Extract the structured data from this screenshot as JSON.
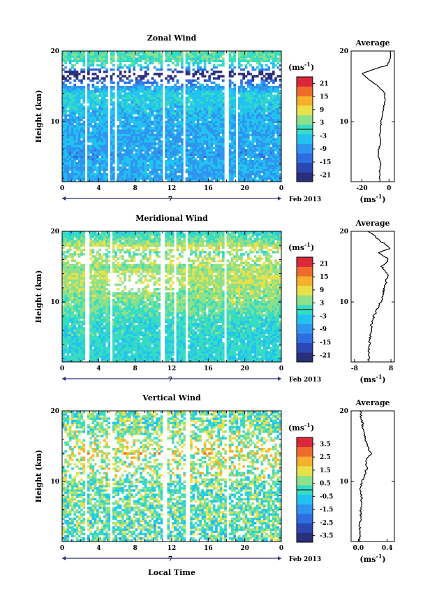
{
  "colors": {
    "colormap": [
      "#2a2f7c",
      "#2b47b2",
      "#2e6ee0",
      "#2f95f0",
      "#22c3f0",
      "#37dcc2",
      "#8ee08a",
      "#e8e14a",
      "#f6b02e",
      "#ee6b2c",
      "#d8283a"
    ],
    "ave_line": "#000000",
    "time_arrow": "#2a2f7c"
  },
  "panels": [
    {
      "key": "zonal",
      "title": "Zonal Wind",
      "ylabel": "Height (km)",
      "yticks": [
        "10",
        "20"
      ],
      "xticks": [
        "0",
        "4",
        "8",
        "12",
        "16",
        "20",
        "0"
      ],
      "date_marker": "7",
      "month_label": "Feb 2013",
      "cbar_unit_base": "(ms",
      "cbar_unit_exp": "-1",
      "cbar_unit_close": ")",
      "cbar_ticks": [
        "21",
        "15",
        "9",
        "3",
        "-3",
        "-9",
        "-15",
        "-21"
      ],
      "avg_title": "Average",
      "avg_yticks": [
        "10",
        "20"
      ],
      "avg_xticks": [
        "-20",
        "0"
      ],
      "avg_unit_base": "(ms",
      "avg_unit_exp": "-1",
      "avg_unit_close": ")"
    },
    {
      "key": "meridional",
      "title": "Meridional Wind",
      "ylabel": "Height (km)",
      "yticks": [
        "10",
        "20"
      ],
      "xticks": [
        "0",
        "4",
        "8",
        "12",
        "16",
        "20",
        "0"
      ],
      "date_marker": "7",
      "month_label": "Feb 2013",
      "cbar_unit_base": "(ms",
      "cbar_unit_exp": "-1",
      "cbar_unit_close": ")",
      "cbar_ticks": [
        "21",
        "15",
        "9",
        "3",
        "-3",
        "-9",
        "-15",
        "-21"
      ],
      "avg_title": "Average",
      "avg_yticks": [
        "10",
        "20"
      ],
      "avg_xticks": [
        "-8",
        "8"
      ],
      "avg_unit_base": "(ms",
      "avg_unit_exp": "-1",
      "avg_unit_close": ")"
    },
    {
      "key": "vertical",
      "title": "Vertical Wind",
      "ylabel": "Height (km)",
      "yticks": [
        "10",
        "20"
      ],
      "xticks": [
        "0",
        "4",
        "8",
        "12",
        "16",
        "20",
        "0"
      ],
      "date_marker": "7",
      "month_label": "Feb 2013",
      "cbar_unit_base": "(ms",
      "cbar_unit_exp": "-1",
      "cbar_unit_close": ")",
      "cbar_ticks": [
        "3.5",
        "2.5",
        "1.5",
        "0.5",
        "-0.5",
        "-1.5",
        "-2.5",
        "-3.5"
      ],
      "avg_title": "Average",
      "avg_yticks": [
        "10",
        "20"
      ],
      "avg_xticks": [
        "0.0",
        "0.4"
      ],
      "avg_unit_base": "(ms",
      "avg_unit_exp": "-1",
      "avg_unit_close": ")",
      "xlabel": "Local Time"
    }
  ],
  "chart_data": [
    {
      "type": "heatmap",
      "title": "Zonal Wind",
      "xlabel": "",
      "ylabel": "Height (km)",
      "x_ticks": [
        "0",
        "4",
        "8",
        "12",
        "16",
        "20",
        "0"
      ],
      "xlim": [
        0,
        24
      ],
      "ylim": [
        1.5,
        20
      ],
      "colorbar": {
        "label": "(ms-1)",
        "ticks": [
          21,
          15,
          9,
          3,
          -3,
          -9,
          -15,
          -21
        ],
        "range": [
          -24,
          24
        ]
      },
      "gaps_hours": [
        [
          2.4,
          2.8
        ],
        [
          5.0,
          5.3
        ],
        [
          5.8,
          6.0
        ],
        [
          10.9,
          11.3
        ],
        [
          13.3,
          13.6
        ],
        [
          17.8,
          18.2
        ],
        [
          19.1,
          19.3
        ]
      ],
      "profile": {
        "mean_by_height_km": [
          [
            1.5,
            -7
          ],
          [
            3,
            -7
          ],
          [
            4,
            -6
          ],
          [
            5,
            -8
          ],
          [
            6,
            -8
          ],
          [
            7,
            -6
          ],
          [
            8,
            -7
          ],
          [
            9,
            -6
          ],
          [
            10,
            -6
          ],
          [
            11,
            -5
          ],
          [
            12,
            -4
          ],
          [
            13,
            -3
          ],
          [
            14,
            -3
          ],
          [
            15,
            -8
          ],
          [
            16,
            -15
          ],
          [
            16.8,
            -20
          ],
          [
            17.5,
            -10
          ],
          [
            18,
            -1
          ],
          [
            19,
            1
          ],
          [
            20,
            1
          ]
        ]
      }
    },
    {
      "type": "heatmap",
      "title": "Meridional Wind",
      "xlabel": "",
      "ylabel": "Height (km)",
      "x_ticks": [
        "0",
        "4",
        "8",
        "12",
        "16",
        "20",
        "0"
      ],
      "xlim": [
        0,
        24
      ],
      "ylim": [
        1.5,
        20
      ],
      "colorbar": {
        "label": "(ms-1)",
        "ticks": [
          21,
          15,
          9,
          3,
          -3,
          -9,
          -15,
          -21
        ],
        "range": [
          -24,
          24
        ]
      },
      "gaps_hours": [
        [
          2.6,
          2.9
        ],
        [
          5.2,
          5.5
        ],
        [
          10.8,
          11.2
        ],
        [
          12.2,
          12.6
        ],
        [
          13.4,
          13.7
        ],
        [
          17.7,
          18.1
        ]
      ],
      "profile": {
        "mean_by_height_km": [
          [
            1.5,
            -1.8
          ],
          [
            3,
            -1.7
          ],
          [
            4,
            -1.5
          ],
          [
            5,
            -1.2
          ],
          [
            6,
            -0.8
          ],
          [
            7,
            -0.5
          ],
          [
            8,
            0.5
          ],
          [
            9,
            2
          ],
          [
            10,
            3.5
          ],
          [
            11,
            4.5
          ],
          [
            12,
            5
          ],
          [
            13,
            6
          ],
          [
            14,
            6.5
          ],
          [
            15,
            4
          ],
          [
            16,
            7
          ],
          [
            17,
            2.5
          ],
          [
            17.6,
            8
          ],
          [
            18.5,
            4
          ],
          [
            19.3,
            1
          ],
          [
            20,
            -2
          ]
        ]
      }
    },
    {
      "type": "heatmap",
      "title": "Vertical Wind",
      "xlabel": "Local Time",
      "ylabel": "Height (km)",
      "x_ticks": [
        "0",
        "4",
        "8",
        "12",
        "16",
        "20",
        "0"
      ],
      "xlim": [
        0,
        24
      ],
      "ylim": [
        1.5,
        20
      ],
      "colorbar": {
        "label": "(ms-1)",
        "ticks": [
          3.5,
          2.5,
          1.5,
          0.5,
          -0.5,
          -1.5,
          -2.5,
          -3.5
        ],
        "range": [
          -4,
          4
        ]
      },
      "gaps_hours": [
        [
          2.4,
          2.8
        ],
        [
          5.2,
          5.4
        ],
        [
          11.1,
          11.4
        ],
        [
          13.6,
          13.9
        ],
        [
          18.0,
          18.3
        ]
      ],
      "profile": {
        "mean_by_height_km": [
          [
            1.5,
            0.02
          ],
          [
            2,
            0.01
          ],
          [
            3,
            0.03
          ],
          [
            4,
            0.02
          ],
          [
            5,
            0.04
          ],
          [
            6,
            0.03
          ],
          [
            7,
            0.05
          ],
          [
            8,
            0.04
          ],
          [
            9,
            0.03
          ],
          [
            10,
            0.05
          ],
          [
            11,
            0.09
          ],
          [
            12,
            0.12
          ],
          [
            13,
            0.1
          ],
          [
            14,
            0.18
          ],
          [
            15,
            0.12
          ],
          [
            16,
            0.1
          ],
          [
            17,
            0.08
          ],
          [
            18,
            0.06
          ],
          [
            19,
            0.04
          ],
          [
            20,
            0.03
          ]
        ]
      }
    }
  ]
}
